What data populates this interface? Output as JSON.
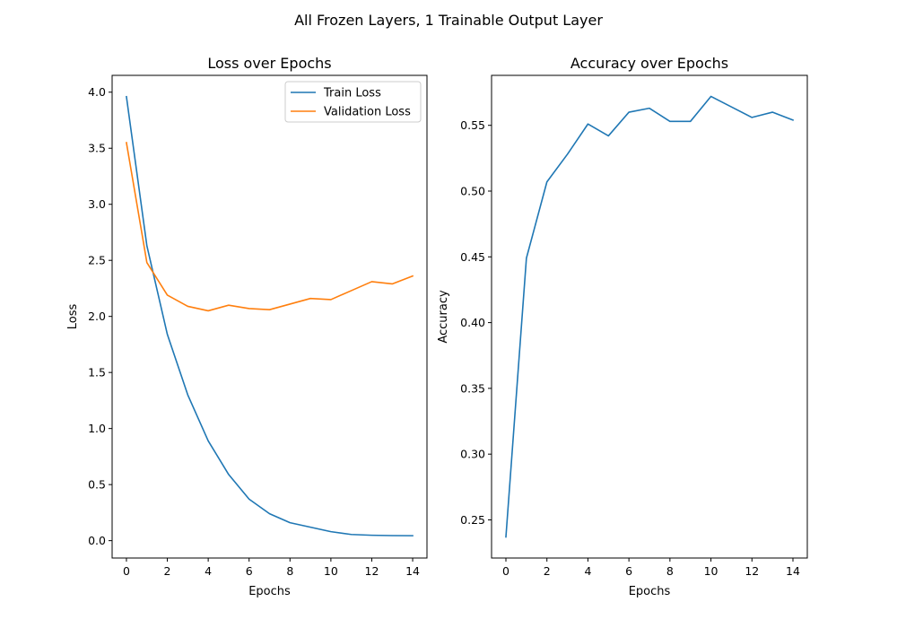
{
  "figure": {
    "title": "All Frozen Layers, 1 Trainable Output Layer"
  },
  "chart_data": [
    {
      "type": "line",
      "title": "Loss over Epochs",
      "xlabel": "Epochs",
      "ylabel": "Loss",
      "xlim": [
        -0.7,
        14.7
      ],
      "ylim": [
        -0.155,
        4.15
      ],
      "xticks": [
        0,
        2,
        4,
        6,
        8,
        10,
        12,
        14
      ],
      "yticks": [
        0.0,
        0.5,
        1.0,
        1.5,
        2.0,
        2.5,
        3.0,
        3.5,
        4.0
      ],
      "ytick_decimals": 1,
      "grid": false,
      "legend": "top-right",
      "x": [
        0,
        1,
        2,
        3,
        4,
        5,
        6,
        7,
        8,
        9,
        10,
        11,
        12,
        13,
        14
      ],
      "series": [
        {
          "name": "Train Loss",
          "color": "#1f77b4",
          "values": [
            3.96,
            2.63,
            1.84,
            1.3,
            0.89,
            0.59,
            0.37,
            0.24,
            0.16,
            0.12,
            0.08,
            0.055,
            0.048,
            0.045,
            0.044
          ]
        },
        {
          "name": "Validation Loss",
          "color": "#ff7f0e",
          "values": [
            3.55,
            2.48,
            2.19,
            2.09,
            2.05,
            2.1,
            2.07,
            2.06,
            2.11,
            2.16,
            2.15,
            2.23,
            2.31,
            2.29,
            2.36
          ]
        }
      ]
    },
    {
      "type": "line",
      "title": "Accuracy over Epochs",
      "xlabel": "Epochs",
      "ylabel": "Accuracy",
      "xlim": [
        -0.7,
        14.7
      ],
      "ylim": [
        0.221,
        0.588
      ],
      "xticks": [
        0,
        2,
        4,
        6,
        8,
        10,
        12,
        14
      ],
      "yticks": [
        0.25,
        0.3,
        0.35,
        0.4,
        0.45,
        0.5,
        0.55
      ],
      "ytick_decimals": 2,
      "grid": false,
      "legend": "none",
      "x": [
        0,
        1,
        2,
        3,
        4,
        5,
        6,
        7,
        8,
        9,
        10,
        11,
        12,
        13,
        14
      ],
      "series": [
        {
          "color": "#1f77b4",
          "values": [
            0.237,
            0.449,
            0.507,
            0.528,
            0.551,
            0.542,
            0.56,
            0.563,
            0.553,
            0.553,
            0.572,
            0.564,
            0.556,
            0.56,
            0.554
          ]
        }
      ]
    }
  ]
}
